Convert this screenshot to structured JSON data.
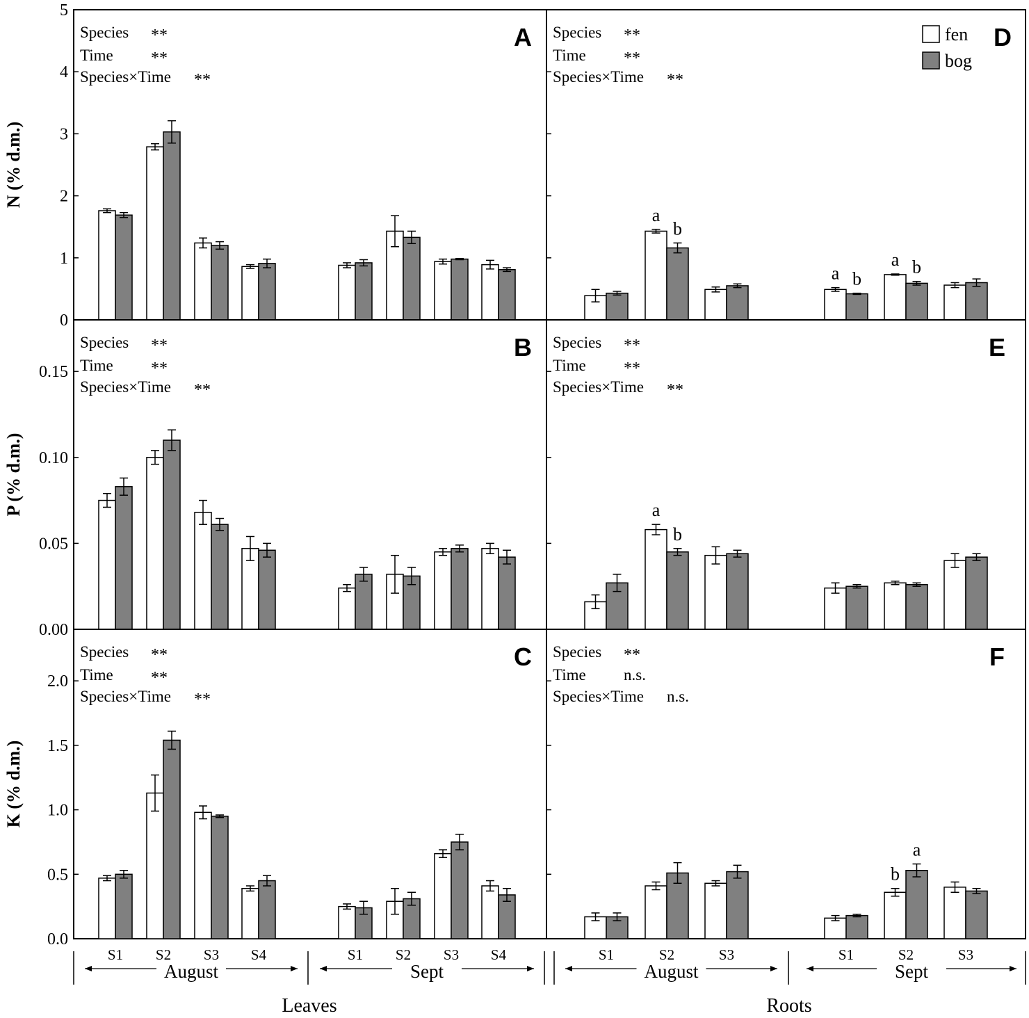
{
  "legend": [
    {
      "name": "fen",
      "color": "#ffffff"
    },
    {
      "name": "bog",
      "color": "#808080"
    }
  ],
  "group_labels": {
    "left": "Leaves",
    "right": "Roots"
  },
  "chart_data": [
    {
      "panel": "A",
      "type": "bar",
      "ylabel": "N (% d.m.)",
      "ylim": [
        0,
        5
      ],
      "yticks": [
        "0",
        "1",
        "2",
        "3",
        "4",
        "5"
      ],
      "ytick_values": [
        0,
        1,
        2,
        3,
        4,
        5
      ],
      "periods": [
        "August",
        "Sept"
      ],
      "categories": [
        "S1",
        "S2",
        "S3",
        "S4"
      ],
      "series": [
        {
          "name": "fen",
          "values": [
            [
              1.76,
              2.79,
              1.24,
              0.86
            ],
            [
              0.88,
              1.43,
              0.94,
              0.89
            ]
          ],
          "errors": [
            [
              0.03,
              0.05,
              0.08,
              0.03
            ],
            [
              0.04,
              0.25,
              0.04,
              0.07
            ]
          ]
        },
        {
          "name": "bog",
          "values": [
            [
              1.69,
              3.03,
              1.2,
              0.91
            ],
            [
              0.92,
              1.33,
              0.98,
              0.81
            ]
          ],
          "errors": [
            [
              0.04,
              0.18,
              0.06,
              0.07
            ],
            [
              0.05,
              0.1,
              0.01,
              0.03
            ]
          ]
        }
      ],
      "stats": [
        {
          "label": "Species",
          "value": "**"
        },
        {
          "label": "Time",
          "value": "**"
        },
        {
          "label": "Species×Time",
          "value": "**"
        }
      ],
      "letters": []
    },
    {
      "panel": "B",
      "type": "bar",
      "ylabel": "P (% d.m.)",
      "ylim": [
        0,
        0.18
      ],
      "yticks": [
        "0.00",
        "0.05",
        "0.10",
        "0.15"
      ],
      "ytick_values": [
        0,
        0.05,
        0.1,
        0.15
      ],
      "periods": [
        "August",
        "Sept"
      ],
      "categories": [
        "S1",
        "S2",
        "S3",
        "S4"
      ],
      "series": [
        {
          "name": "fen",
          "values": [
            [
              0.075,
              0.1,
              0.068,
              0.047
            ],
            [
              0.024,
              0.032,
              0.045,
              0.047
            ]
          ],
          "errors": [
            [
              0.004,
              0.004,
              0.007,
              0.007
            ],
            [
              0.002,
              0.011,
              0.002,
              0.003
            ]
          ]
        },
        {
          "name": "bog",
          "values": [
            [
              0.083,
              0.11,
              0.061,
              0.046
            ],
            [
              0.032,
              0.031,
              0.047,
              0.042
            ]
          ],
          "errors": [
            [
              0.005,
              0.006,
              0.0035,
              0.004
            ],
            [
              0.004,
              0.005,
              0.002,
              0.004
            ]
          ]
        }
      ],
      "stats": [
        {
          "label": "Species",
          "value": "**"
        },
        {
          "label": "Time",
          "value": "**"
        },
        {
          "label": "Species×Time",
          "value": "**"
        }
      ],
      "letters": []
    },
    {
      "panel": "C",
      "type": "bar",
      "ylabel": "K (% d.m.)",
      "ylim": [
        0,
        2.4
      ],
      "yticks": [
        "0.0",
        "0.5",
        "1.0",
        "1.5",
        "2.0"
      ],
      "ytick_values": [
        0,
        0.5,
        1.0,
        1.5,
        2.0
      ],
      "periods": [
        "August",
        "Sept"
      ],
      "categories": [
        "S1",
        "S2",
        "S3",
        "S4"
      ],
      "series": [
        {
          "name": "fen",
          "values": [
            [
              0.47,
              1.13,
              0.98,
              0.39
            ],
            [
              0.25,
              0.29,
              0.66,
              0.41
            ]
          ],
          "errors": [
            [
              0.02,
              0.14,
              0.05,
              0.02
            ],
            [
              0.02,
              0.1,
              0.03,
              0.04
            ]
          ]
        },
        {
          "name": "bog",
          "values": [
            [
              0.5,
              1.54,
              0.95,
              0.45
            ],
            [
              0.24,
              0.31,
              0.75,
              0.34
            ]
          ],
          "errors": [
            [
              0.03,
              0.07,
              0.01,
              0.04
            ],
            [
              0.05,
              0.05,
              0.06,
              0.05
            ]
          ]
        }
      ],
      "stats": [
        {
          "label": "Species",
          "value": "**"
        },
        {
          "label": "Time",
          "value": "**"
        },
        {
          "label": "Species×Time",
          "value": "**"
        }
      ],
      "letters": []
    },
    {
      "panel": "D",
      "type": "bar",
      "ylabel": "",
      "ylim": [
        0,
        5
      ],
      "ytick_values": [
        0,
        1,
        2,
        3,
        4,
        5
      ],
      "periods": [
        "August",
        "Sept"
      ],
      "categories": [
        "S1",
        "S2",
        "S3"
      ],
      "series": [
        {
          "name": "fen",
          "values": [
            [
              0.39,
              1.43,
              0.49
            ],
            [
              0.49,
              0.73,
              0.56
            ]
          ],
          "errors": [
            [
              0.1,
              0.03,
              0.04
            ],
            [
              0.03,
              0.01,
              0.04
            ]
          ]
        },
        {
          "name": "bog",
          "values": [
            [
              0.43,
              1.16,
              0.55
            ],
            [
              0.42,
              0.59,
              0.6
            ]
          ],
          "errors": [
            [
              0.03,
              0.08,
              0.03
            ],
            [
              0.01,
              0.03,
              0.06
            ]
          ]
        }
      ],
      "stats": [
        {
          "label": "Species",
          "value": "**"
        },
        {
          "label": "Time",
          "value": "**"
        },
        {
          "label": "Species×Time",
          "value": "**"
        }
      ],
      "letters": [
        {
          "period": 0,
          "cat": 1,
          "fen": "a",
          "bog": "b"
        },
        {
          "period": 1,
          "cat": 0,
          "fen": "a",
          "bog": "b"
        },
        {
          "period": 1,
          "cat": 1,
          "fen": "a",
          "bog": "b"
        }
      ]
    },
    {
      "panel": "E",
      "type": "bar",
      "ylabel": "",
      "ylim": [
        0,
        0.18
      ],
      "ytick_values": [
        0,
        0.05,
        0.1,
        0.15
      ],
      "periods": [
        "August",
        "Sept"
      ],
      "categories": [
        "S1",
        "S2",
        "S3"
      ],
      "series": [
        {
          "name": "fen",
          "values": [
            [
              0.016,
              0.058,
              0.043
            ],
            [
              0.024,
              0.027,
              0.04
            ]
          ],
          "errors": [
            [
              0.004,
              0.003,
              0.005
            ],
            [
              0.003,
              0.001,
              0.004
            ]
          ]
        },
        {
          "name": "bog",
          "values": [
            [
              0.027,
              0.045,
              0.044
            ],
            [
              0.025,
              0.026,
              0.042
            ]
          ],
          "errors": [
            [
              0.005,
              0.002,
              0.002
            ],
            [
              0.001,
              0.001,
              0.002
            ]
          ]
        }
      ],
      "stats": [
        {
          "label": "Species",
          "value": "**"
        },
        {
          "label": "Time",
          "value": "**"
        },
        {
          "label": "Species×Time",
          "value": "**"
        }
      ],
      "letters": [
        {
          "period": 0,
          "cat": 1,
          "fen": "a",
          "bog": "b"
        }
      ]
    },
    {
      "panel": "F",
      "type": "bar",
      "ylabel": "",
      "ylim": [
        0,
        2.4
      ],
      "ytick_values": [
        0,
        0.5,
        1.0,
        1.5,
        2.0
      ],
      "periods": [
        "August",
        "Sept"
      ],
      "categories": [
        "S1",
        "S2",
        "S3"
      ],
      "series": [
        {
          "name": "fen",
          "values": [
            [
              0.17,
              0.41,
              0.43
            ],
            [
              0.16,
              0.36,
              0.4
            ]
          ],
          "errors": [
            [
              0.03,
              0.03,
              0.02
            ],
            [
              0.02,
              0.03,
              0.04
            ]
          ]
        },
        {
          "name": "bog",
          "values": [
            [
              0.17,
              0.51,
              0.52
            ],
            [
              0.18,
              0.53,
              0.37
            ]
          ],
          "errors": [
            [
              0.03,
              0.08,
              0.05
            ],
            [
              0.01,
              0.05,
              0.02
            ]
          ]
        }
      ],
      "stats": [
        {
          "label": "Species",
          "value": "**"
        },
        {
          "label": "Time",
          "value": "n.s."
        },
        {
          "label": "Species×Time",
          "value": "n.s."
        }
      ],
      "letters": [
        {
          "period": 1,
          "cat": 1,
          "fen": "b",
          "bog": "a"
        }
      ]
    }
  ]
}
